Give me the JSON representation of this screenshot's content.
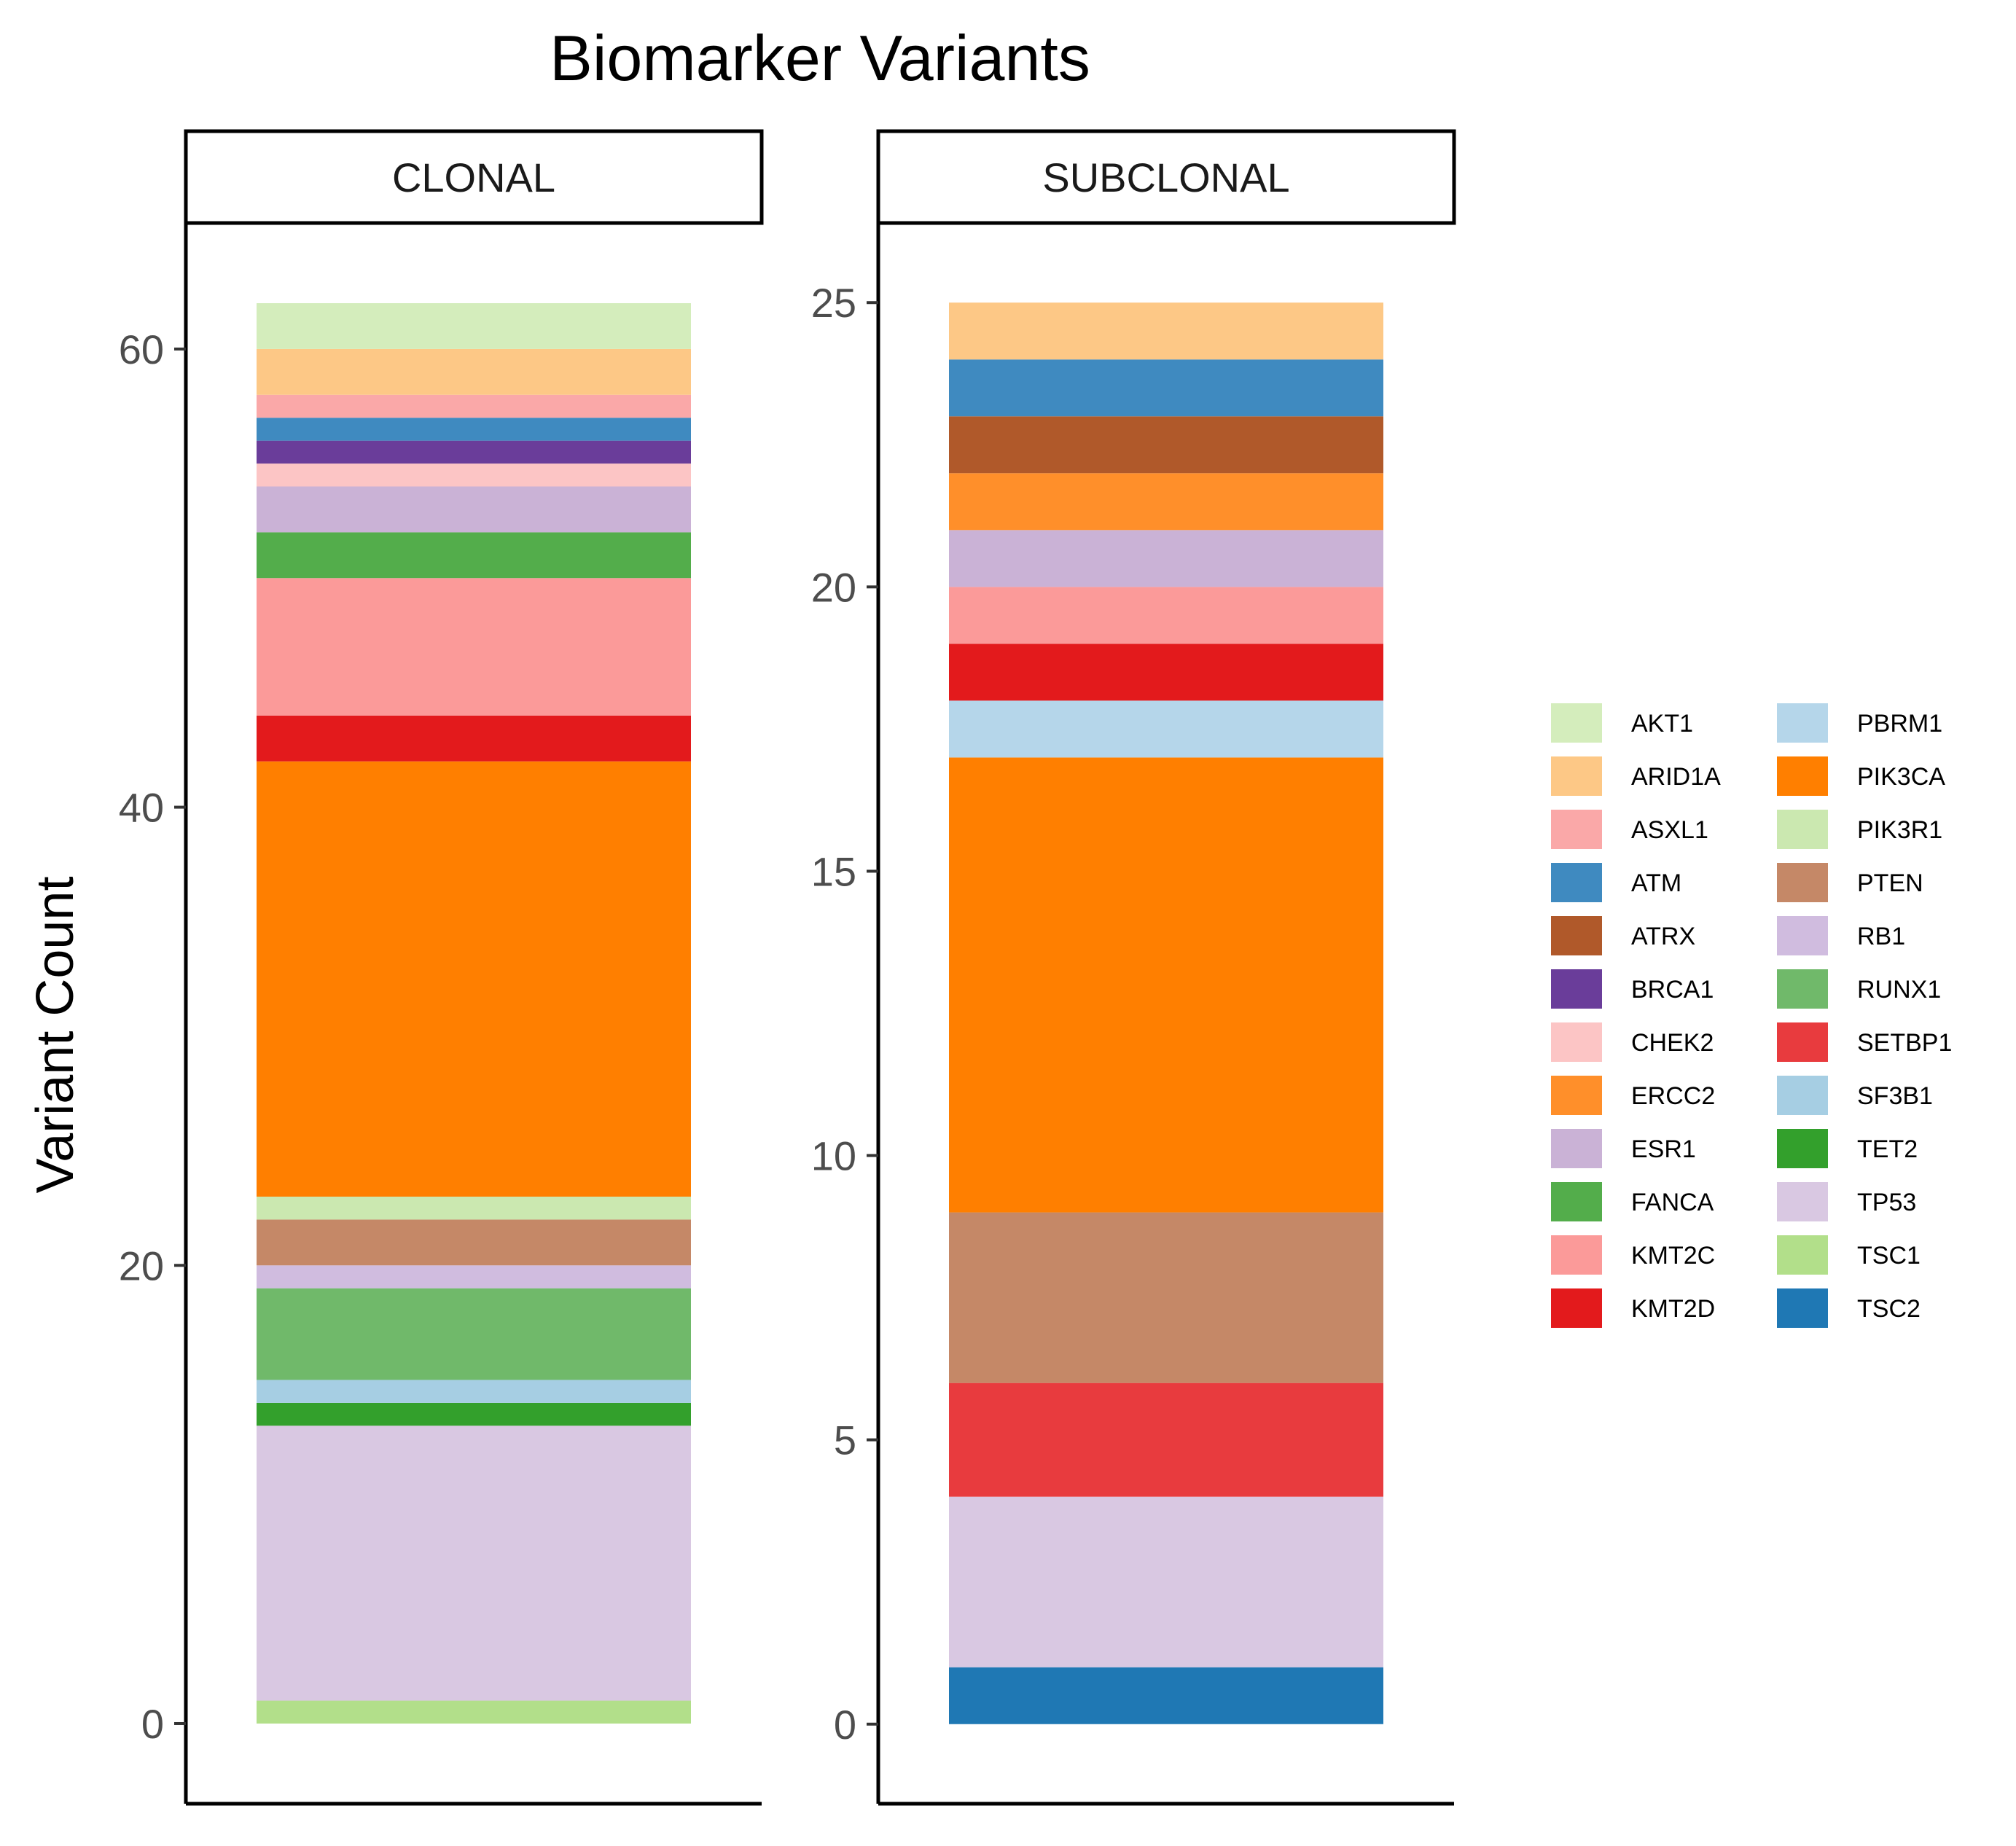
{
  "chart_data": {
    "type": "bar",
    "stacked": true,
    "title": "Biomarker Variants",
    "xlabel": "",
    "ylabel": "Variant Count",
    "grid": false,
    "legend_position": "right",
    "legend_columns": 2,
    "facets": [
      {
        "label": "CLONAL",
        "ylim": [
          -3.5,
          65.5
        ],
        "yticks": [
          0,
          20,
          40,
          60
        ],
        "stack": [
          {
            "gene": "TSC1",
            "value": 1
          },
          {
            "gene": "TP53",
            "value": 12
          },
          {
            "gene": "TET2",
            "value": 1
          },
          {
            "gene": "SF3B1",
            "value": 1
          },
          {
            "gene": "RUNX1",
            "value": 4
          },
          {
            "gene": "RB1",
            "value": 1
          },
          {
            "gene": "PTEN",
            "value": 2
          },
          {
            "gene": "PIK3R1",
            "value": 1
          },
          {
            "gene": "PIK3CA",
            "value": 19
          },
          {
            "gene": "KMT2D",
            "value": 2
          },
          {
            "gene": "KMT2C",
            "value": 6
          },
          {
            "gene": "FANCA",
            "value": 2
          },
          {
            "gene": "ESR1",
            "value": 2
          },
          {
            "gene": "CHEK2",
            "value": 1
          },
          {
            "gene": "BRCA1",
            "value": 1
          },
          {
            "gene": "ATM",
            "value": 1
          },
          {
            "gene": "ASXL1",
            "value": 1
          },
          {
            "gene": "ARID1A",
            "value": 2
          },
          {
            "gene": "AKT1",
            "value": 2
          }
        ]
      },
      {
        "label": "SUBCLONAL",
        "ylim": [
          -1.4,
          26.4
        ],
        "yticks": [
          0,
          5,
          10,
          15,
          20,
          25
        ],
        "stack": [
          {
            "gene": "TSC2",
            "value": 1
          },
          {
            "gene": "TP53",
            "value": 3
          },
          {
            "gene": "SETBP1",
            "value": 2
          },
          {
            "gene": "PTEN",
            "value": 3
          },
          {
            "gene": "PIK3CA",
            "value": 8
          },
          {
            "gene": "PBRM1",
            "value": 1
          },
          {
            "gene": "KMT2D",
            "value": 1
          },
          {
            "gene": "KMT2C",
            "value": 1
          },
          {
            "gene": "ESR1",
            "value": 1
          },
          {
            "gene": "ERCC2",
            "value": 1
          },
          {
            "gene": "ATRX",
            "value": 1
          },
          {
            "gene": "ATM",
            "value": 1
          },
          {
            "gene": "ARID1A",
            "value": 1
          }
        ]
      }
    ],
    "legend": [
      {
        "gene": "AKT1",
        "color": "#d4edbc"
      },
      {
        "gene": "ARID1A",
        "color": "#fdc886"
      },
      {
        "gene": "ASXL1",
        "color": "#faa8a8"
      },
      {
        "gene": "ATM",
        "color": "#3f8ac0"
      },
      {
        "gene": "ATRX",
        "color": "#b0592a"
      },
      {
        "gene": "BRCA1",
        "color": "#6a3d9a"
      },
      {
        "gene": "CHEK2",
        "color": "#fcc5c5"
      },
      {
        "gene": "ERCC2",
        "color": "#ff8f2a"
      },
      {
        "gene": "ESR1",
        "color": "#cab2d6"
      },
      {
        "gene": "FANCA",
        "color": "#53ad4b"
      },
      {
        "gene": "KMT2C",
        "color": "#fb9a99"
      },
      {
        "gene": "KMT2D",
        "color": "#e31a1c"
      },
      {
        "gene": "PBRM1",
        "color": "#b5d6ea"
      },
      {
        "gene": "PIK3CA",
        "color": "#ff7f00"
      },
      {
        "gene": "PIK3R1",
        "color": "#cbe8b0"
      },
      {
        "gene": "PTEN",
        "color": "#c58867"
      },
      {
        "gene": "RB1",
        "color": "#d0bcdf"
      },
      {
        "gene": "RUNX1",
        "color": "#70b96a"
      },
      {
        "gene": "SETBP1",
        "color": "#e83b3e"
      },
      {
        "gene": "SF3B1",
        "color": "#a6cee3"
      },
      {
        "gene": "TET2",
        "color": "#33a02c"
      },
      {
        "gene": "TP53",
        "color": "#d9c8e2"
      },
      {
        "gene": "TSC1",
        "color": "#b2df8a"
      },
      {
        "gene": "TSC2",
        "color": "#1f78b4"
      }
    ]
  }
}
